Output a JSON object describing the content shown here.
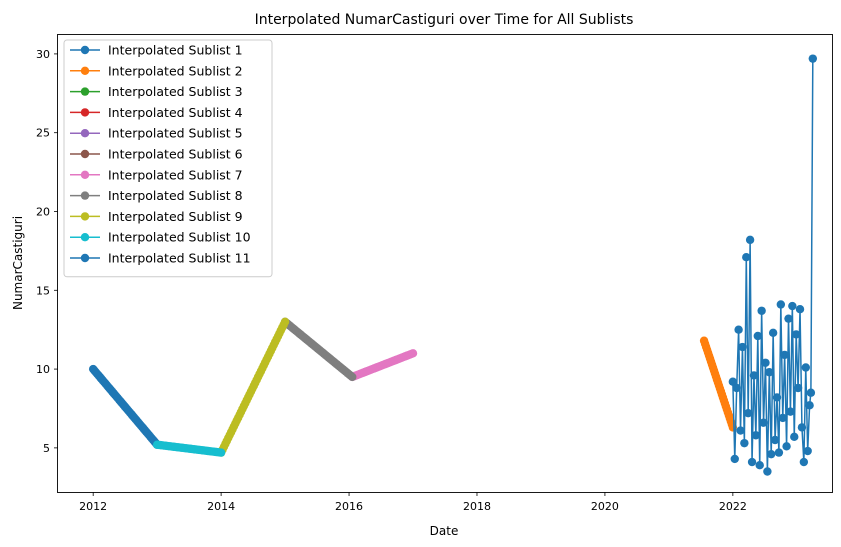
{
  "chart_data": {
    "type": "line",
    "title": "Interpolated NumarCastiguri over Time for All Sublists",
    "xlabel": "Date",
    "ylabel": "NumarCastiguri",
    "xlim": [
      2011.45,
      2023.55
    ],
    "ylim": [
      2.2,
      31.2
    ],
    "xticks": [
      2012,
      2014,
      2016,
      2018,
      2020,
      2022
    ],
    "yticks": [
      5,
      10,
      15,
      20,
      25,
      30
    ],
    "grid": false,
    "legend_position": "upper left",
    "series": [
      {
        "name": "Interpolated Sublist 1",
        "color": "#1f77b4",
        "segments": [
          {
            "x": [
              2012.0,
              2013.0
            ],
            "y": [
              10.0,
              5.2
            ],
            "n": 48
          }
        ]
      },
      {
        "name": "Interpolated Sublist 2",
        "color": "#ff7f0e",
        "segments": [
          {
            "x": [
              2021.55,
              2022.0
            ],
            "y": [
              11.8,
              6.3
            ],
            "n": 30
          }
        ]
      },
      {
        "name": "Interpolated Sublist 3",
        "color": "#2ca02c",
        "segments": []
      },
      {
        "name": "Interpolated Sublist 4",
        "color": "#d62728",
        "segments": []
      },
      {
        "name": "Interpolated Sublist 5",
        "color": "#9467bd",
        "segments": []
      },
      {
        "name": "Interpolated Sublist 6",
        "color": "#8c564b",
        "segments": []
      },
      {
        "name": "Interpolated Sublist 7",
        "color": "#e377c2",
        "segments": [
          {
            "x": [
              2016.05,
              2017.0
            ],
            "y": [
              9.5,
              11.0
            ],
            "n": 40
          }
        ]
      },
      {
        "name": "Interpolated Sublist 8",
        "color": "#7f7f7f",
        "segments": [
          {
            "x": [
              2015.0,
              2016.05
            ],
            "y": [
              13.0,
              9.5
            ],
            "n": 44
          }
        ]
      },
      {
        "name": "Interpolated Sublist 9",
        "color": "#bcbd22",
        "segments": [
          {
            "x": [
              2014.0,
              2015.0
            ],
            "y": [
              4.7,
              13.0
            ],
            "n": 46
          }
        ]
      },
      {
        "name": "Interpolated Sublist 10",
        "color": "#17becf",
        "segments": [
          {
            "x": [
              2013.0,
              2014.0
            ],
            "y": [
              5.2,
              4.7
            ],
            "n": 40
          }
        ]
      },
      {
        "name": "Interpolated Sublist 11",
        "color": "#1f77b4",
        "points": [
          [
            2022.0,
            9.2
          ],
          [
            2022.03,
            4.3
          ],
          [
            2022.06,
            8.8
          ],
          [
            2022.09,
            12.5
          ],
          [
            2022.12,
            6.1
          ],
          [
            2022.15,
            11.4
          ],
          [
            2022.18,
            5.3
          ],
          [
            2022.21,
            17.1
          ],
          [
            2022.24,
            7.2
          ],
          [
            2022.27,
            18.2
          ],
          [
            2022.3,
            4.1
          ],
          [
            2022.33,
            9.6
          ],
          [
            2022.36,
            5.8
          ],
          [
            2022.39,
            12.1
          ],
          [
            2022.42,
            3.9
          ],
          [
            2022.45,
            13.7
          ],
          [
            2022.48,
            6.6
          ],
          [
            2022.51,
            10.4
          ],
          [
            2022.54,
            3.5
          ],
          [
            2022.57,
            9.8
          ],
          [
            2022.6,
            4.6
          ],
          [
            2022.63,
            12.3
          ],
          [
            2022.66,
            5.5
          ],
          [
            2022.69,
            8.2
          ],
          [
            2022.72,
            4.7
          ],
          [
            2022.75,
            14.1
          ],
          [
            2022.78,
            6.9
          ],
          [
            2022.81,
            10.9
          ],
          [
            2022.84,
            5.1
          ],
          [
            2022.87,
            13.2
          ],
          [
            2022.9,
            7.3
          ],
          [
            2022.93,
            14.0
          ],
          [
            2022.96,
            5.7
          ],
          [
            2022.99,
            12.2
          ],
          [
            2023.02,
            8.8
          ],
          [
            2023.05,
            13.8
          ],
          [
            2023.08,
            6.3
          ],
          [
            2023.11,
            4.1
          ],
          [
            2023.14,
            10.1
          ],
          [
            2023.17,
            4.8
          ],
          [
            2023.2,
            7.7
          ],
          [
            2023.22,
            8.5
          ],
          [
            2023.25,
            29.7
          ]
        ]
      }
    ]
  }
}
